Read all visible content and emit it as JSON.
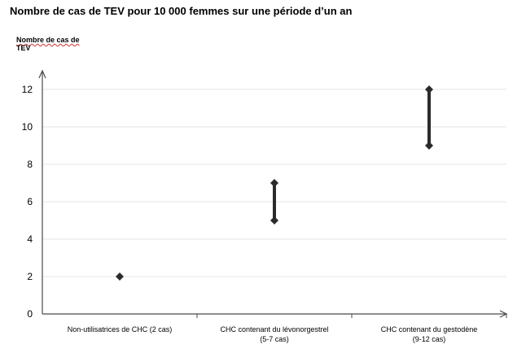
{
  "chart_data": {
    "type": "range",
    "title": "Nombre de cas de TEV pour 10 000 femmes sur une période d’un an",
    "ylabel_lines": [
      "Nombre de cas de",
      "TEV"
    ],
    "ylim": [
      0,
      12
    ],
    "yticks": [
      0,
      2,
      4,
      6,
      8,
      10,
      12
    ],
    "grid": true,
    "categories": [
      {
        "lines": [
          "Non-utilisatrices de CHC (2 cas)"
        ],
        "low": 2,
        "high": 2
      },
      {
        "lines": [
          "CHC contenant du lévonorgestrel",
          "(5-7 cas)"
        ],
        "low": 5,
        "high": 7
      },
      {
        "lines": [
          "CHC contenant du gestodène",
          "(9-12 cas)"
        ],
        "low": 9,
        "high": 12
      }
    ],
    "colors": {
      "marker": "#2b2b2b",
      "axis": "#4a4a4a",
      "grid": "#e6e6e6"
    }
  }
}
